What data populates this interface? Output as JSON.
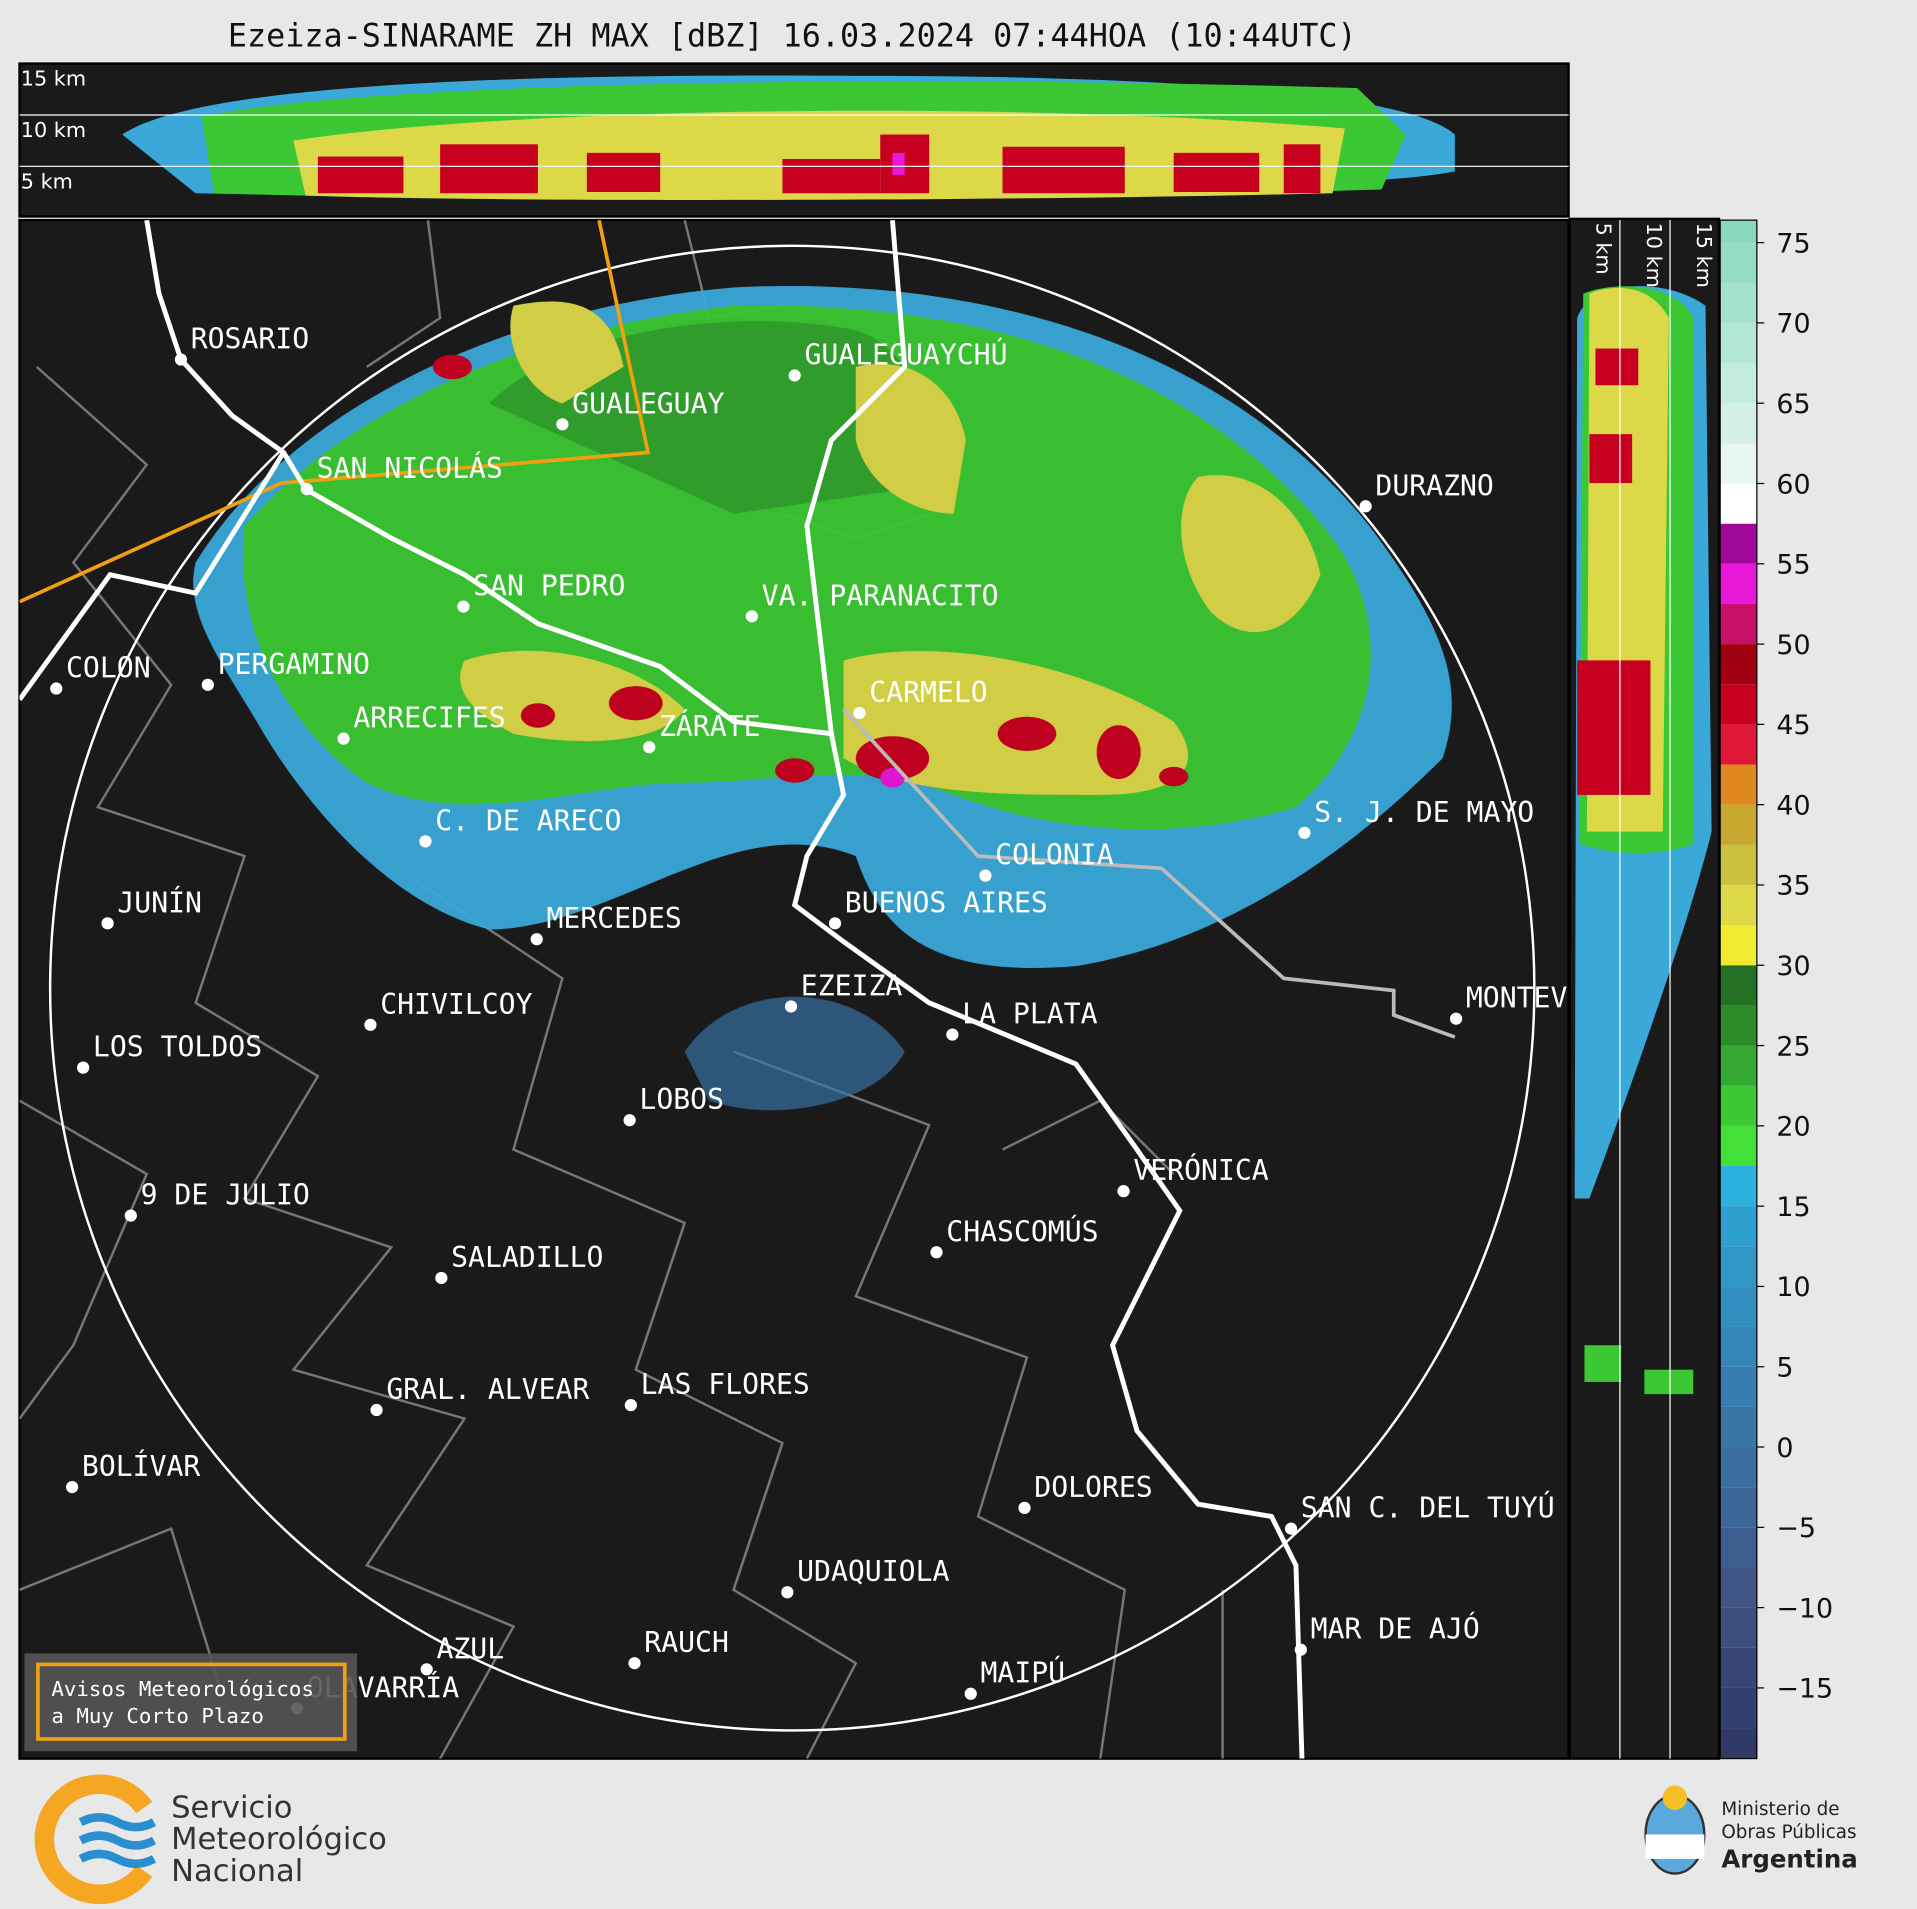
{
  "title": "Ezeiza-SINARAME ZH MAX [dBZ] 16.03.2024 07:44HOA (10:44UTC)",
  "profile_top": {
    "levels": [
      "15 km",
      "10 km",
      "5 km"
    ]
  },
  "profile_right": {
    "levels": [
      "5 km",
      "10 km",
      "15 km"
    ]
  },
  "cities": [
    "ROSARIO",
    "GUALEGUAY",
    "GUALEGUAYCHÚ",
    "SAN NICOLÁS",
    "DURAZNO",
    "SAN PEDRO",
    "VA. PARANACITO",
    "COLON",
    "PERGAMINO",
    "CARMELO",
    "ARRECIFES",
    "ZÁRATE",
    "S. J. DE MAYO",
    "C. DE ARECO",
    "COLONIA",
    "BUENOS AIRES",
    "JUNÍN",
    "MERCEDES",
    "EZEIZA",
    "MONTEVIDEO",
    "CHIVILCOY",
    "LA PLATA",
    "LOS TOLDOS",
    "LOBOS",
    "VERÓNICA",
    "9 DE JULIO",
    "CHASCOMÚS",
    "SALADILLO",
    "GRAL. ALVEAR",
    "LAS FLORES",
    "BOLÍVAR",
    "DOLORES",
    "SAN C. DEL TUYÚ",
    "UDAQUIOLA",
    "MAR DE AJÓ",
    "RAUCH",
    "AZUL",
    "OLAVARRÍA",
    "MAIPÚ"
  ],
  "colorbar": {
    "ylim": [
      -19.4,
      76.4
    ],
    "yticks": [
      75,
      70,
      65,
      60,
      55,
      50,
      45,
      40,
      35,
      30,
      25,
      20,
      15,
      10,
      5,
      0,
      {
        "value": -5,
        "label": "−5"
      },
      {
        "value": -10,
        "label": "−10"
      },
      {
        "value": -15,
        "label": "−15"
      }
    ],
    "levels_start": -20,
    "level_step": 2.5,
    "colors": [
      "#2f3a66",
      "#333f6e",
      "#374676",
      "#3b4e7e",
      "#3f5686",
      "#3e5e90",
      "#3c6698",
      "#3a6ea0",
      "#3876a8",
      "#367eb0",
      "#3486b8",
      "#328ec0",
      "#3096c8",
      "#2ea0d0",
      "#2cb0dc",
      "#44e038",
      "#3cc834",
      "#34a830",
      "#2c8c2a",
      "#247024",
      "#f0ea30",
      "#dcd848",
      "#ccc040",
      "#c8a830",
      "#e08820",
      "#e01838",
      "#c80020",
      "#a00010",
      "#c8106a",
      "#e818d8",
      "#a00898",
      "#ffffff",
      "#e8f6f0",
      "#d4f0e6",
      "#c4ecde",
      "#b4e6d6",
      "#a4e2ce",
      "#94dcc6",
      "#88d8c0"
    ]
  },
  "notice": [
    "Avisos Meteorológicos",
    "a Muy Corto Plazo"
  ],
  "footer": {
    "agency": [
      "Servicio",
      "Meteorológico",
      "Nacional"
    ],
    "ministry": [
      "Ministerio de",
      "Obras Públicas",
      "Argentina"
    ]
  }
}
